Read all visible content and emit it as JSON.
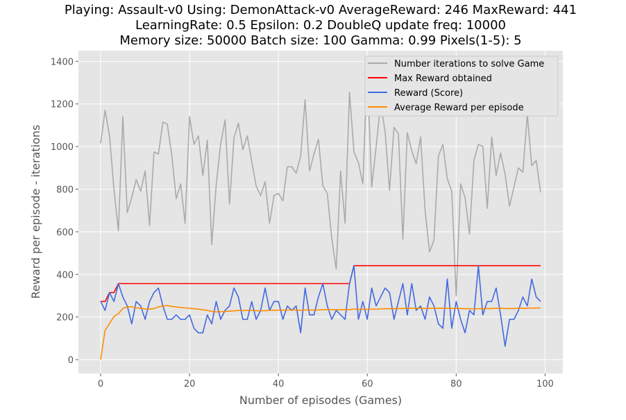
{
  "chart_data": {
    "type": "line",
    "title_lines": [
      "Playing: Assault-v0 Using: DemonAttack-v0 AverageReward: 246 MaxReward: 441",
      "LearningRate: 0.5 Epsilon: 0.2 DoubleQ update freq: 10000",
      "Memory size: 50000 Batch size: 100 Gamma: 0.99 Pixels(1-5): 5"
    ],
    "xlabel": "Number of episodes (Games)",
    "ylabel": "Reward per episode - iterations",
    "xlim": [
      -5,
      104
    ],
    "ylim": [
      -65,
      1450
    ],
    "xticks": [
      0,
      20,
      40,
      60,
      80,
      100
    ],
    "yticks": [
      0,
      200,
      400,
      600,
      800,
      1000,
      1200,
      1400
    ],
    "grid": true,
    "legend_position": "top-right",
    "series": [
      {
        "name": "Number iterations to solve Game",
        "color": "#aaaaaa",
        "values": [
          1015,
          1170,
          1050,
          800,
          605,
          1140,
          690,
          760,
          845,
          790,
          885,
          630,
          975,
          965,
          1115,
          1105,
          960,
          755,
          825,
          640,
          1140,
          1010,
          1050,
          865,
          1030,
          540,
          820,
          1010,
          1125,
          730,
          1040,
          1110,
          985,
          1050,
          930,
          815,
          770,
          835,
          640,
          770,
          780,
          745,
          905,
          905,
          875,
          955,
          1220,
          885,
          965,
          1035,
          815,
          780,
          570,
          425,
          885,
          640,
          1255,
          975,
          925,
          825,
          1370,
          810,
          1000,
          1200,
          1070,
          795,
          1090,
          1060,
          565,
          1065,
          980,
          920,
          1045,
          700,
          505,
          560,
          955,
          1010,
          850,
          790,
          300,
          825,
          760,
          590,
          935,
          1010,
          1000,
          710,
          1045,
          865,
          970,
          870,
          720,
          810,
          900,
          880,
          1150,
          910,
          935,
          785
        ]
      },
      {
        "name": "Max Reward obtained",
        "color": "#ff0000",
        "values": [
          273,
          273,
          315,
          315,
          357,
          357,
          357,
          357,
          357,
          357,
          357,
          357,
          357,
          357,
          357,
          357,
          357,
          357,
          357,
          357,
          357,
          357,
          357,
          357,
          357,
          357,
          357,
          357,
          357,
          357,
          357,
          357,
          357,
          357,
          357,
          357,
          357,
          357,
          357,
          357,
          357,
          357,
          357,
          357,
          357,
          357,
          357,
          357,
          357,
          357,
          357,
          357,
          357,
          357,
          357,
          357,
          357,
          441,
          441,
          441,
          441,
          441,
          441,
          441,
          441,
          441,
          441,
          441,
          441,
          441,
          441,
          441,
          441,
          441,
          441,
          441,
          441,
          441,
          441,
          441,
          441,
          441,
          441,
          441,
          441,
          441,
          441,
          441,
          441,
          441,
          441,
          441,
          441,
          441,
          441,
          441,
          441,
          441,
          441,
          441
        ]
      },
      {
        "name": "Reward (Score)",
        "color": "#4169e1",
        "values": [
          273,
          231,
          315,
          273,
          357,
          294,
          252,
          168,
          273,
          252,
          189,
          273,
          315,
          336,
          252,
          189,
          189,
          210,
          189,
          189,
          210,
          147,
          126,
          126,
          210,
          168,
          273,
          189,
          231,
          252,
          336,
          294,
          189,
          189,
          273,
          189,
          231,
          336,
          231,
          273,
          273,
          189,
          252,
          231,
          252,
          126,
          336,
          210,
          210,
          294,
          357,
          252,
          189,
          231,
          210,
          189,
          357,
          441,
          189,
          273,
          189,
          336,
          252,
          294,
          336,
          315,
          189,
          273,
          357,
          210,
          357,
          231,
          252,
          189,
          294,
          252,
          168,
          147,
          378,
          147,
          273,
          189,
          126,
          231,
          210,
          441,
          210,
          273,
          273,
          336,
          210,
          63,
          189,
          189,
          231,
          294,
          252,
          378,
          294,
          273
        ]
      },
      {
        "name": "Average Reward per episode",
        "color": "#ff8c00",
        "values": [
          0,
          137,
          170,
          202,
          216,
          240,
          248,
          248,
          243,
          241,
          238,
          237,
          240,
          247,
          252,
          254,
          250,
          247,
          245,
          243,
          241,
          239,
          237,
          234,
          231,
          227,
          224,
          225,
          226,
          228,
          229,
          231,
          230,
          231,
          231,
          230,
          229,
          230,
          231,
          232,
          232,
          232,
          233,
          233,
          233,
          231,
          233,
          233,
          232,
          233,
          234,
          235,
          234,
          234,
          234,
          234,
          235,
          238,
          236,
          236,
          236,
          237,
          237,
          238,
          239,
          239,
          239,
          240,
          240,
          241,
          241,
          241,
          241,
          240,
          241,
          241,
          241,
          241,
          241,
          240,
          241,
          240,
          239,
          239,
          238,
          239,
          239,
          240,
          240,
          241,
          241,
          240,
          240,
          240,
          241,
          241,
          241,
          242,
          242,
          243
        ]
      }
    ]
  }
}
